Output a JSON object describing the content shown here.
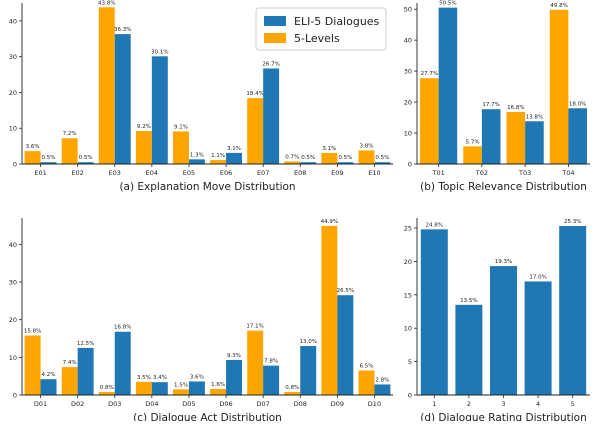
{
  "colors": {
    "eli5": "#1f77b4",
    "levels": "#ffa500",
    "axis": "#222222"
  },
  "legend": {
    "series_a": "ELI-5 Dialogues",
    "series_b": "5-Levels"
  },
  "chart_data": [
    {
      "id": "a",
      "type": "bar",
      "title": "(a) Explanation Move Distribution",
      "categories": [
        "E01",
        "E02",
        "E03",
        "E04",
        "E05",
        "E06",
        "E07",
        "E08",
        "E09",
        "E10"
      ],
      "ylim": [
        0,
        45
      ],
      "yticks": [
        0,
        10,
        20,
        30,
        40
      ],
      "series": [
        {
          "name": "5-Levels",
          "color": "#ffa500",
          "values": [
            3.6,
            7.2,
            43.8,
            9.2,
            9.1,
            1.1,
            18.4,
            0.7,
            3.1,
            3.8
          ],
          "labels": [
            "3.6%",
            "7.2%",
            "43.8%",
            "9.2%",
            "9.1%",
            "1.1%",
            "18.4%",
            "0.7%",
            "3.1%",
            "3.8%"
          ]
        },
        {
          "name": "ELI-5 Dialogues",
          "color": "#1f77b4",
          "values": [
            0.5,
            0.5,
            36.3,
            30.1,
            1.3,
            3.1,
            26.7,
            0.5,
            0.5,
            0.5
          ],
          "labels": [
            "0.5%",
            "0.5%",
            "36.3%",
            "30.1%",
            "1.3%",
            "3.1%",
            "26.7%",
            "0.5%",
            "0.5%",
            "0.5%"
          ]
        }
      ]
    },
    {
      "id": "b",
      "type": "bar",
      "title": "(b) Topic Relevance Distribution",
      "categories": [
        "T01",
        "T02",
        "T03",
        "T04"
      ],
      "ylim": [
        0,
        52
      ],
      "yticks": [
        0,
        10,
        20,
        30,
        40,
        50
      ],
      "series": [
        {
          "name": "5-Levels",
          "color": "#ffa500",
          "values": [
            27.7,
            5.7,
            16.8,
            49.8
          ],
          "labels": [
            "27.7%",
            "5.7%",
            "16.8%",
            "49.8%"
          ]
        },
        {
          "name": "ELI-5 Dialogues",
          "color": "#1f77b4",
          "values": [
            50.5,
            17.7,
            13.8,
            18.0
          ],
          "labels": [
            "50.5%",
            "17.7%",
            "13.8%",
            "18.0%"
          ]
        }
      ]
    },
    {
      "id": "c",
      "type": "bar",
      "title": "(c) Dialogue Act Distribution",
      "categories": [
        "D01",
        "D02",
        "D03",
        "D04",
        "D05",
        "D06",
        "D07",
        "D08",
        "D09",
        "D10"
      ],
      "ylim": [
        0,
        47
      ],
      "yticks": [
        0,
        10,
        20,
        30,
        40
      ],
      "series": [
        {
          "name": "5-Levels",
          "color": "#ffa500",
          "values": [
            15.8,
            7.4,
            0.8,
            3.5,
            1.5,
            1.6,
            17.1,
            0.8,
            44.9,
            6.5
          ],
          "labels": [
            "15.8%",
            "7.4%",
            "0.8%",
            "3.5%",
            "1.5%",
            "1.6%",
            "17.1%",
            "0.8%",
            "44.9%",
            "6.5%"
          ]
        },
        {
          "name": "ELI-5 Dialogues",
          "color": "#1f77b4",
          "values": [
            4.2,
            12.5,
            16.8,
            3.4,
            3.6,
            9.3,
            7.8,
            13.0,
            26.5,
            2.8
          ],
          "labels": [
            "4.2%",
            "12.5%",
            "16.8%",
            "3.4%",
            "3.6%",
            "9.3%",
            "7.8%",
            "13.0%",
            "26.5%",
            "2.8%"
          ]
        }
      ]
    },
    {
      "id": "d",
      "type": "bar",
      "title": "(d)  Dialogue Rating Distribution",
      "categories": [
        "1",
        "2",
        "3",
        "4",
        "5"
      ],
      "ylim": [
        0,
        26.5
      ],
      "yticks": [
        0,
        5,
        10,
        15,
        20,
        25
      ],
      "series": [
        {
          "name": "ELI-5 Dialogues",
          "color": "#1f77b4",
          "values": [
            24.8,
            13.5,
            19.3,
            17.0,
            25.3
          ],
          "labels": [
            "24.8%",
            "13.5%",
            "19.3%",
            "17.0%",
            "25.3%"
          ]
        }
      ]
    }
  ]
}
